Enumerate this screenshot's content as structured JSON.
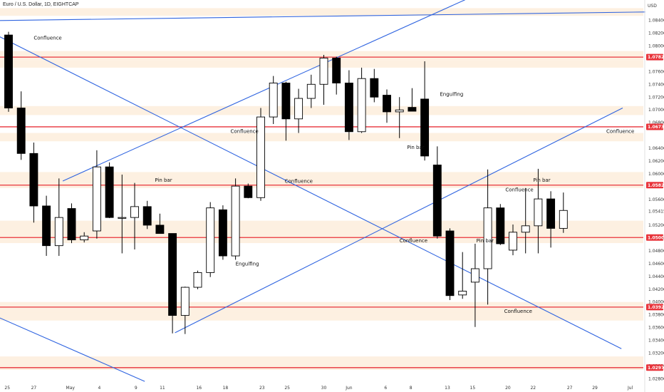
{
  "title": "Euro / U.S. Dollar, 1D, EIGHTCAP",
  "axis": {
    "unit": "USD"
  },
  "colors": {
    "zone": "#fdf0e1",
    "level_line": "#e8333a",
    "trend_line": "#2f64e0",
    "bull_fill": "#ffffff",
    "bear_fill": "#000000",
    "badge_bg": "#e8333a"
  },
  "chart_data": {
    "type": "candlestick",
    "title": "Euro / U.S. Dollar, 1D, EIGHTCAP",
    "y_unit": "USD",
    "ylim": [
      1.0265,
      1.0865
    ],
    "x_tick_labels": [
      "25",
      "27",
      "May",
      "4",
      "9",
      "11",
      "16",
      "18",
      "23",
      "25",
      "30",
      "Jun",
      "6",
      "8",
      "13",
      "15",
      "20",
      "22",
      "27",
      "29",
      "Jul"
    ],
    "y_tick_labels": [
      "1.08400",
      "1.08200",
      "1.08000",
      "1.07600",
      "1.07400",
      "1.07200",
      "1.07000",
      "1.06800",
      "1.06400",
      "1.06200",
      "1.06000",
      "1.05600",
      "1.05200",
      "1.05000",
      "1.04800",
      "1.04600",
      "1.04400",
      "1.04200",
      "1.04000",
      "1.03800",
      "1.03600",
      "1.03400",
      "1.03200",
      "1.03000",
      "1.02800"
    ],
    "current_price_label": "1.05415",
    "candles": [
      {
        "o": 1.0817,
        "h": 1.0822,
        "l": 1.0697,
        "c": 1.0703
      },
      {
        "o": 1.0703,
        "h": 1.0729,
        "l": 1.0622,
        "c": 1.0632
      },
      {
        "o": 1.0632,
        "h": 1.0649,
        "l": 1.0524,
        "c": 1.055
      },
      {
        "o": 1.055,
        "h": 1.0566,
        "l": 1.0472,
        "c": 1.0488
      },
      {
        "o": 1.0488,
        "h": 1.0593,
        "l": 1.0472,
        "c": 1.0532
      },
      {
        "o": 1.0546,
        "h": 1.0554,
        "l": 1.0492,
        "c": 1.0497
      },
      {
        "o": 1.0497,
        "h": 1.0509,
        "l": 1.0493,
        "c": 1.0503
      },
      {
        "o": 1.0511,
        "h": 1.0637,
        "l": 1.0499,
        "c": 1.0611
      },
      {
        "o": 1.0611,
        "h": 1.0618,
        "l": 1.0531,
        "c": 1.0532
      },
      {
        "o": 1.0532,
        "h": 1.0599,
        "l": 1.0476,
        "c": 1.0532
      },
      {
        "o": 1.0532,
        "h": 1.0586,
        "l": 1.0482,
        "c": 1.0549
      },
      {
        "o": 1.0549,
        "h": 1.0558,
        "l": 1.0514,
        "c": 1.052
      },
      {
        "o": 1.052,
        "h": 1.0538,
        "l": 1.0507,
        "c": 1.0507
      },
      {
        "o": 1.0507,
        "h": 1.0507,
        "l": 1.0351,
        "c": 1.0379
      },
      {
        "o": 1.0379,
        "h": 1.0424,
        "l": 1.035,
        "c": 1.0423
      },
      {
        "o": 1.0423,
        "h": 1.0449,
        "l": 1.042,
        "c": 1.0446
      },
      {
        "o": 1.0446,
        "h": 1.0556,
        "l": 1.0439,
        "c": 1.0547
      },
      {
        "o": 1.0544,
        "h": 1.0551,
        "l": 1.0466,
        "c": 1.0472
      },
      {
        "o": 1.0472,
        "h": 1.0593,
        "l": 1.0466,
        "c": 1.0581
      },
      {
        "o": 1.0581,
        "h": 1.0585,
        "l": 1.0562,
        "c": 1.0563
      },
      {
        "o": 1.0563,
        "h": 1.0703,
        "l": 1.0558,
        "c": 1.0689
      },
      {
        "o": 1.0689,
        "h": 1.0753,
        "l": 1.0678,
        "c": 1.0742
      },
      {
        "o": 1.0742,
        "h": 1.0744,
        "l": 1.0652,
        "c": 1.0686
      },
      {
        "o": 1.0686,
        "h": 1.0733,
        "l": 1.0664,
        "c": 1.0718
      },
      {
        "o": 1.0718,
        "h": 1.0755,
        "l": 1.0703,
        "c": 1.074
      },
      {
        "o": 1.074,
        "h": 1.0786,
        "l": 1.0708,
        "c": 1.0781
      },
      {
        "o": 1.0781,
        "h": 1.0783,
        "l": 1.0724,
        "c": 1.0742
      },
      {
        "o": 1.0742,
        "h": 1.0762,
        "l": 1.0653,
        "c": 1.0666
      },
      {
        "o": 1.0666,
        "h": 1.0766,
        "l": 1.0664,
        "c": 1.0749
      },
      {
        "o": 1.0749,
        "h": 1.0764,
        "l": 1.0712,
        "c": 1.072
      },
      {
        "o": 1.0723,
        "h": 1.0732,
        "l": 1.068,
        "c": 1.0697
      },
      {
        "o": 1.0697,
        "h": 1.072,
        "l": 1.0656,
        "c": 1.07
      },
      {
        "o": 1.0704,
        "h": 1.0734,
        "l": 1.0698,
        "c": 1.0698
      },
      {
        "o": 1.0717,
        "h": 1.0776,
        "l": 1.0621,
        "c": 1.0628
      },
      {
        "o": 1.0614,
        "h": 1.0643,
        "l": 1.0499,
        "c": 1.0503
      },
      {
        "o": 1.0511,
        "h": 1.0515,
        "l": 1.0403,
        "c": 1.041
      },
      {
        "o": 1.0411,
        "h": 1.0478,
        "l": 1.0405,
        "c": 1.0417
      },
      {
        "o": 1.0431,
        "h": 1.0491,
        "l": 1.0361,
        "c": 1.0452
      },
      {
        "o": 1.0452,
        "h": 1.0607,
        "l": 1.0396,
        "c": 1.0547
      },
      {
        "o": 1.0547,
        "h": 1.0553,
        "l": 1.0489,
        "c": 1.0491
      },
      {
        "o": 1.0481,
        "h": 1.0521,
        "l": 1.0473,
        "c": 1.0509
      },
      {
        "o": 1.0509,
        "h": 1.0578,
        "l": 1.0476,
        "c": 1.0519
      },
      {
        "o": 1.0519,
        "h": 1.0608,
        "l": 1.0476,
        "c": 1.0561
      },
      {
        "o": 1.0561,
        "h": 1.0573,
        "l": 1.0485,
        "c": 1.0515
      },
      {
        "o": 1.0515,
        "h": 1.0571,
        "l": 1.0508,
        "c": 1.0543
      }
    ],
    "zones": [
      {
        "from": 1.0847,
        "to": 1.0859
      },
      {
        "from": 1.0778,
        "to": 1.0792
      },
      {
        "from": 1.0766,
        "to": 1.0778
      },
      {
        "from": 1.0692,
        "to": 1.0706
      },
      {
        "from": 1.0651,
        "to": 1.0664
      },
      {
        "from": 1.0578,
        "to": 1.0603
      },
      {
        "from": 1.0492,
        "to": 1.0527
      },
      {
        "from": 1.04,
        "to": 1.0383
      },
      {
        "from": 1.0371,
        "to": 1.0384
      },
      {
        "from": 1.0294,
        "to": 1.0315
      }
    ],
    "levels": [
      {
        "price": 1.07825,
        "label": "1.07825"
      },
      {
        "price": 1.06736,
        "label": "1.06736"
      },
      {
        "price": 1.05825,
        "label": "1.05825"
      },
      {
        "price": 1.05007,
        "label": "1.05007"
      },
      {
        "price": 1.0392,
        "label": "1.03920"
      },
      {
        "price": 1.02975,
        "label": "1.02975"
      }
    ],
    "trendlines": [
      {
        "x1": -3.0,
        "y1": 1.0839,
        "x2": 50.5,
        "y2": 1.0853
      },
      {
        "x1": 4.3,
        "y1": 1.0589,
        "x2": 36.2,
        "y2": 1.0872
      },
      {
        "x1": -3.0,
        "y1": 1.0837,
        "x2": 48.6,
        "y2": 1.0327
      },
      {
        "x1": 13.2,
        "y1": 1.0352,
        "x2": 48.7,
        "y2": 1.0703
      },
      {
        "x1": -3.0,
        "y1": 1.0395,
        "x2": 10.8,
        "y2": 1.0276
      }
    ],
    "annotations": [
      {
        "text": "Confluence",
        "x": 2.0,
        "y": 1.081
      },
      {
        "text": "Confluence",
        "x": 17.6,
        "y": 1.0664
      },
      {
        "text": "Confluence",
        "x": 21.9,
        "y": 1.0586
      },
      {
        "text": "Pin bar",
        "x": 11.6,
        "y": 1.0588
      },
      {
        "text": "Engulfing",
        "x": 18.0,
        "y": 1.0457
      },
      {
        "text": "Engulfing",
        "x": 34.2,
        "y": 1.0722
      },
      {
        "text": "Pin bar",
        "x": 31.6,
        "y": 1.0639
      },
      {
        "text": "Confluence",
        "x": 31.0,
        "y": 1.0493
      },
      {
        "text": "Pin bar",
        "x": 37.1,
        "y": 1.0493
      },
      {
        "text": "Confluence",
        "x": 39.4,
        "y": 1.0573
      },
      {
        "text": "Pin bar",
        "x": 41.6,
        "y": 1.0588
      },
      {
        "text": "Confluence",
        "x": 39.3,
        "y": 1.0383
      },
      {
        "text": "Confluence",
        "x": 47.4,
        "y": 1.0664
      }
    ]
  }
}
